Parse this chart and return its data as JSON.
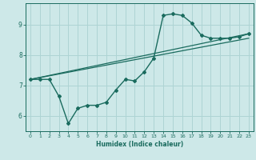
{
  "xlabel": "Humidex (Indice chaleur)",
  "bg_color": "#cde8e8",
  "line_color": "#1a6b5e",
  "grid_color": "#aed4d4",
  "xlim": [
    -0.5,
    23.5
  ],
  "ylim": [
    5.5,
    9.7
  ],
  "yticks": [
    6,
    7,
    8,
    9
  ],
  "xticks": [
    0,
    1,
    2,
    3,
    4,
    5,
    6,
    7,
    8,
    9,
    10,
    11,
    12,
    13,
    14,
    15,
    16,
    17,
    18,
    19,
    20,
    21,
    22,
    23
  ],
  "series1_x": [
    0,
    1,
    2,
    3,
    4,
    5,
    6,
    7,
    8,
    9,
    10,
    11,
    12,
    13,
    14,
    15,
    16,
    17,
    18,
    19,
    20,
    21,
    22,
    23
  ],
  "series1_y": [
    7.2,
    7.2,
    7.2,
    6.65,
    5.75,
    6.25,
    6.35,
    6.35,
    6.45,
    6.85,
    7.2,
    7.15,
    7.45,
    7.9,
    9.3,
    9.35,
    9.3,
    9.05,
    8.65,
    8.55,
    8.55,
    8.55,
    8.6,
    8.7
  ],
  "series2_x": [
    0,
    23
  ],
  "series2_y": [
    7.2,
    8.7
  ],
  "series3_x": [
    0,
    23
  ],
  "series3_y": [
    7.2,
    8.55
  ]
}
